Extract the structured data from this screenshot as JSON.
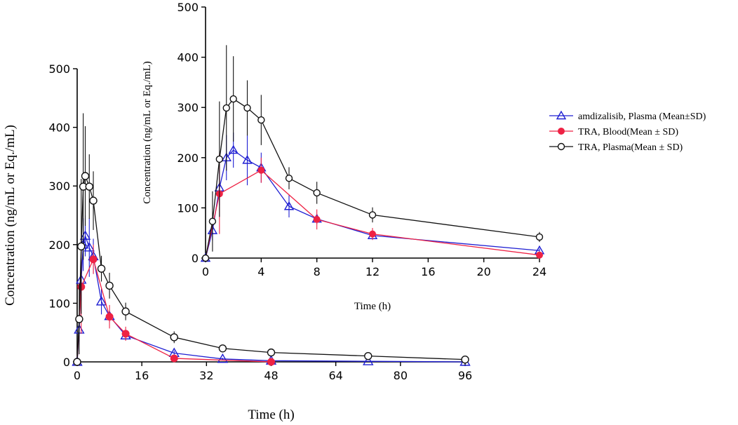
{
  "chart_data": [
    {
      "id": "main",
      "type": "line",
      "title": "",
      "xlabel": "Time (h)",
      "ylabel": "Concentration (ng/mL or Eq./mL)",
      "xlim": [
        0,
        96
      ],
      "ylim": [
        0,
        500
      ],
      "xticks": [
        "0",
        "16",
        "32",
        "48",
        "64",
        "80",
        "96"
      ],
      "yticks": [
        "0",
        "100",
        "200",
        "300",
        "400",
        "500"
      ],
      "series": [
        {
          "name": "amdizalisib, Plasma (Mean±SD)",
          "color": "#1f1fd2",
          "marker": "open-triangle",
          "x": [
            0,
            0.5,
            1,
            1.5,
            2,
            3,
            4,
            6,
            8,
            12,
            24,
            36,
            48,
            72,
            96
          ],
          "y": [
            0,
            55,
            140,
            200,
            215,
            195,
            180,
            103,
            78,
            45,
            15,
            5,
            2,
            1,
            0
          ],
          "sd": [
            0,
            20,
            35,
            45,
            35,
            50,
            30,
            22,
            10,
            8,
            4,
            2,
            1,
            0,
            0
          ]
        },
        {
          "name": "TRA, Blood(Mean ± SD)",
          "color": "#ee2244",
          "marker": "filled-circle",
          "x": [
            0,
            1,
            4,
            8,
            12,
            24,
            48
          ],
          "y": [
            0,
            128,
            175,
            77,
            48,
            6,
            0
          ],
          "sd": [
            0,
            80,
            25,
            20,
            12,
            4,
            0
          ]
        },
        {
          "name": "TRA, Plasma(Mean ± SD)",
          "color": "#111111",
          "marker": "open-circle",
          "x": [
            0,
            0.5,
            1,
            1.5,
            2,
            3,
            4,
            6,
            8,
            12,
            24,
            36,
            48,
            72,
            96
          ],
          "y": [
            0,
            73,
            197,
            299,
            317,
            299,
            275,
            159,
            130,
            86,
            42,
            23,
            16,
            10,
            4
          ],
          "sd": [
            0,
            60,
            115,
            125,
            85,
            55,
            50,
            22,
            22,
            15,
            10,
            4,
            3,
            2,
            1
          ]
        }
      ]
    },
    {
      "id": "inset",
      "type": "line",
      "title": "",
      "xlabel": "Time (h)",
      "ylabel": "Concentration (ng/mL or Eq./mL)",
      "xlim": [
        0,
        24
      ],
      "ylim": [
        0,
        500
      ],
      "xticks": [
        "0",
        "4",
        "8",
        "12",
        "16",
        "20",
        "24"
      ],
      "yticks": [
        "0",
        "100",
        "200",
        "300",
        "400",
        "500"
      ],
      "series": [
        {
          "name": "amdizalisib, Plasma (Mean±SD)",
          "color": "#1f1fd2",
          "marker": "open-triangle",
          "x": [
            0,
            0.5,
            1,
            1.5,
            2,
            3,
            4,
            6,
            8,
            12,
            24
          ],
          "y": [
            0,
            55,
            140,
            200,
            215,
            195,
            180,
            103,
            78,
            45,
            15
          ],
          "sd": [
            0,
            20,
            35,
            45,
            35,
            50,
            30,
            22,
            10,
            8,
            4
          ]
        },
        {
          "name": "TRA, Blood(Mean ± SD)",
          "color": "#ee2244",
          "marker": "filled-circle",
          "x": [
            0,
            1,
            4,
            8,
            12,
            24
          ],
          "y": [
            0,
            128,
            175,
            77,
            48,
            6
          ],
          "sd": [
            0,
            80,
            25,
            20,
            12,
            4
          ]
        },
        {
          "name": "TRA, Plasma(Mean ± SD)",
          "color": "#111111",
          "marker": "open-circle",
          "x": [
            0,
            0.5,
            1,
            1.5,
            2,
            3,
            4,
            6,
            8,
            12,
            24
          ],
          "y": [
            0,
            73,
            197,
            299,
            317,
            299,
            275,
            159,
            130,
            86,
            42
          ],
          "sd": [
            0,
            60,
            115,
            125,
            85,
            55,
            50,
            22,
            22,
            15,
            10
          ]
        }
      ]
    }
  ],
  "legend": {
    "placement": "right",
    "entries": [
      {
        "label": "amdizalisib, Plasma (Mean±SD)",
        "color": "#1f1fd2",
        "marker": "open-triangle"
      },
      {
        "label": "TRA, Blood(Mean ± SD)",
        "color": "#ee2244",
        "marker": "filled-circle"
      },
      {
        "label": "TRA, Plasma(Mean ± SD)",
        "color": "#111111",
        "marker": "open-circle"
      }
    ]
  }
}
